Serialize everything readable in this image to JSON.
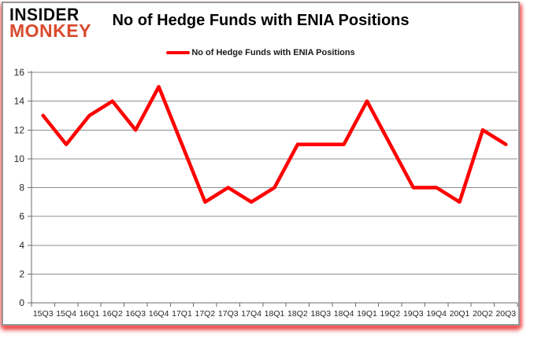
{
  "logo": {
    "line1": "INSIDER",
    "line2": "MONKEY"
  },
  "header": {
    "title": "No of Hedge Funds with ENIA Positions"
  },
  "legend": {
    "label": "No of Hedge Funds with ENIA Positions"
  },
  "chart_data": {
    "type": "line",
    "title": "No of Hedge Funds with ENIA Positions",
    "categories": [
      "15Q3",
      "15Q4",
      "16Q1",
      "16Q2",
      "16Q3",
      "16Q4",
      "17Q1",
      "17Q2",
      "17Q3",
      "17Q4",
      "18Q1",
      "18Q2",
      "18Q3",
      "18Q4",
      "19Q1",
      "19Q2",
      "19Q3",
      "19Q4",
      "20Q1",
      "20Q2",
      "20Q3"
    ],
    "series": [
      {
        "name": "No of Hedge Funds with ENIA Positions",
        "values": [
          13,
          11,
          13,
          14,
          12,
          15,
          11,
          7,
          8,
          7,
          8,
          11,
          11,
          11,
          14,
          11,
          8,
          8,
          7,
          12,
          11
        ]
      }
    ],
    "xlabel": "",
    "ylabel": "",
    "ylim": [
      0,
      16
    ],
    "yticks": [
      0,
      2,
      4,
      6,
      8,
      10,
      12,
      14,
      16
    ],
    "grid": true,
    "legend_position": "top"
  },
  "colors": {
    "series_line": "#ff0000",
    "gridline": "#8e8e8e",
    "axis": "#6b6b6b",
    "tick_text": "#262626",
    "title_text": "#000000",
    "logo_insider": "#0a0a0a",
    "logo_monkey": "#d94a2e",
    "frame_border": "#979797"
  }
}
